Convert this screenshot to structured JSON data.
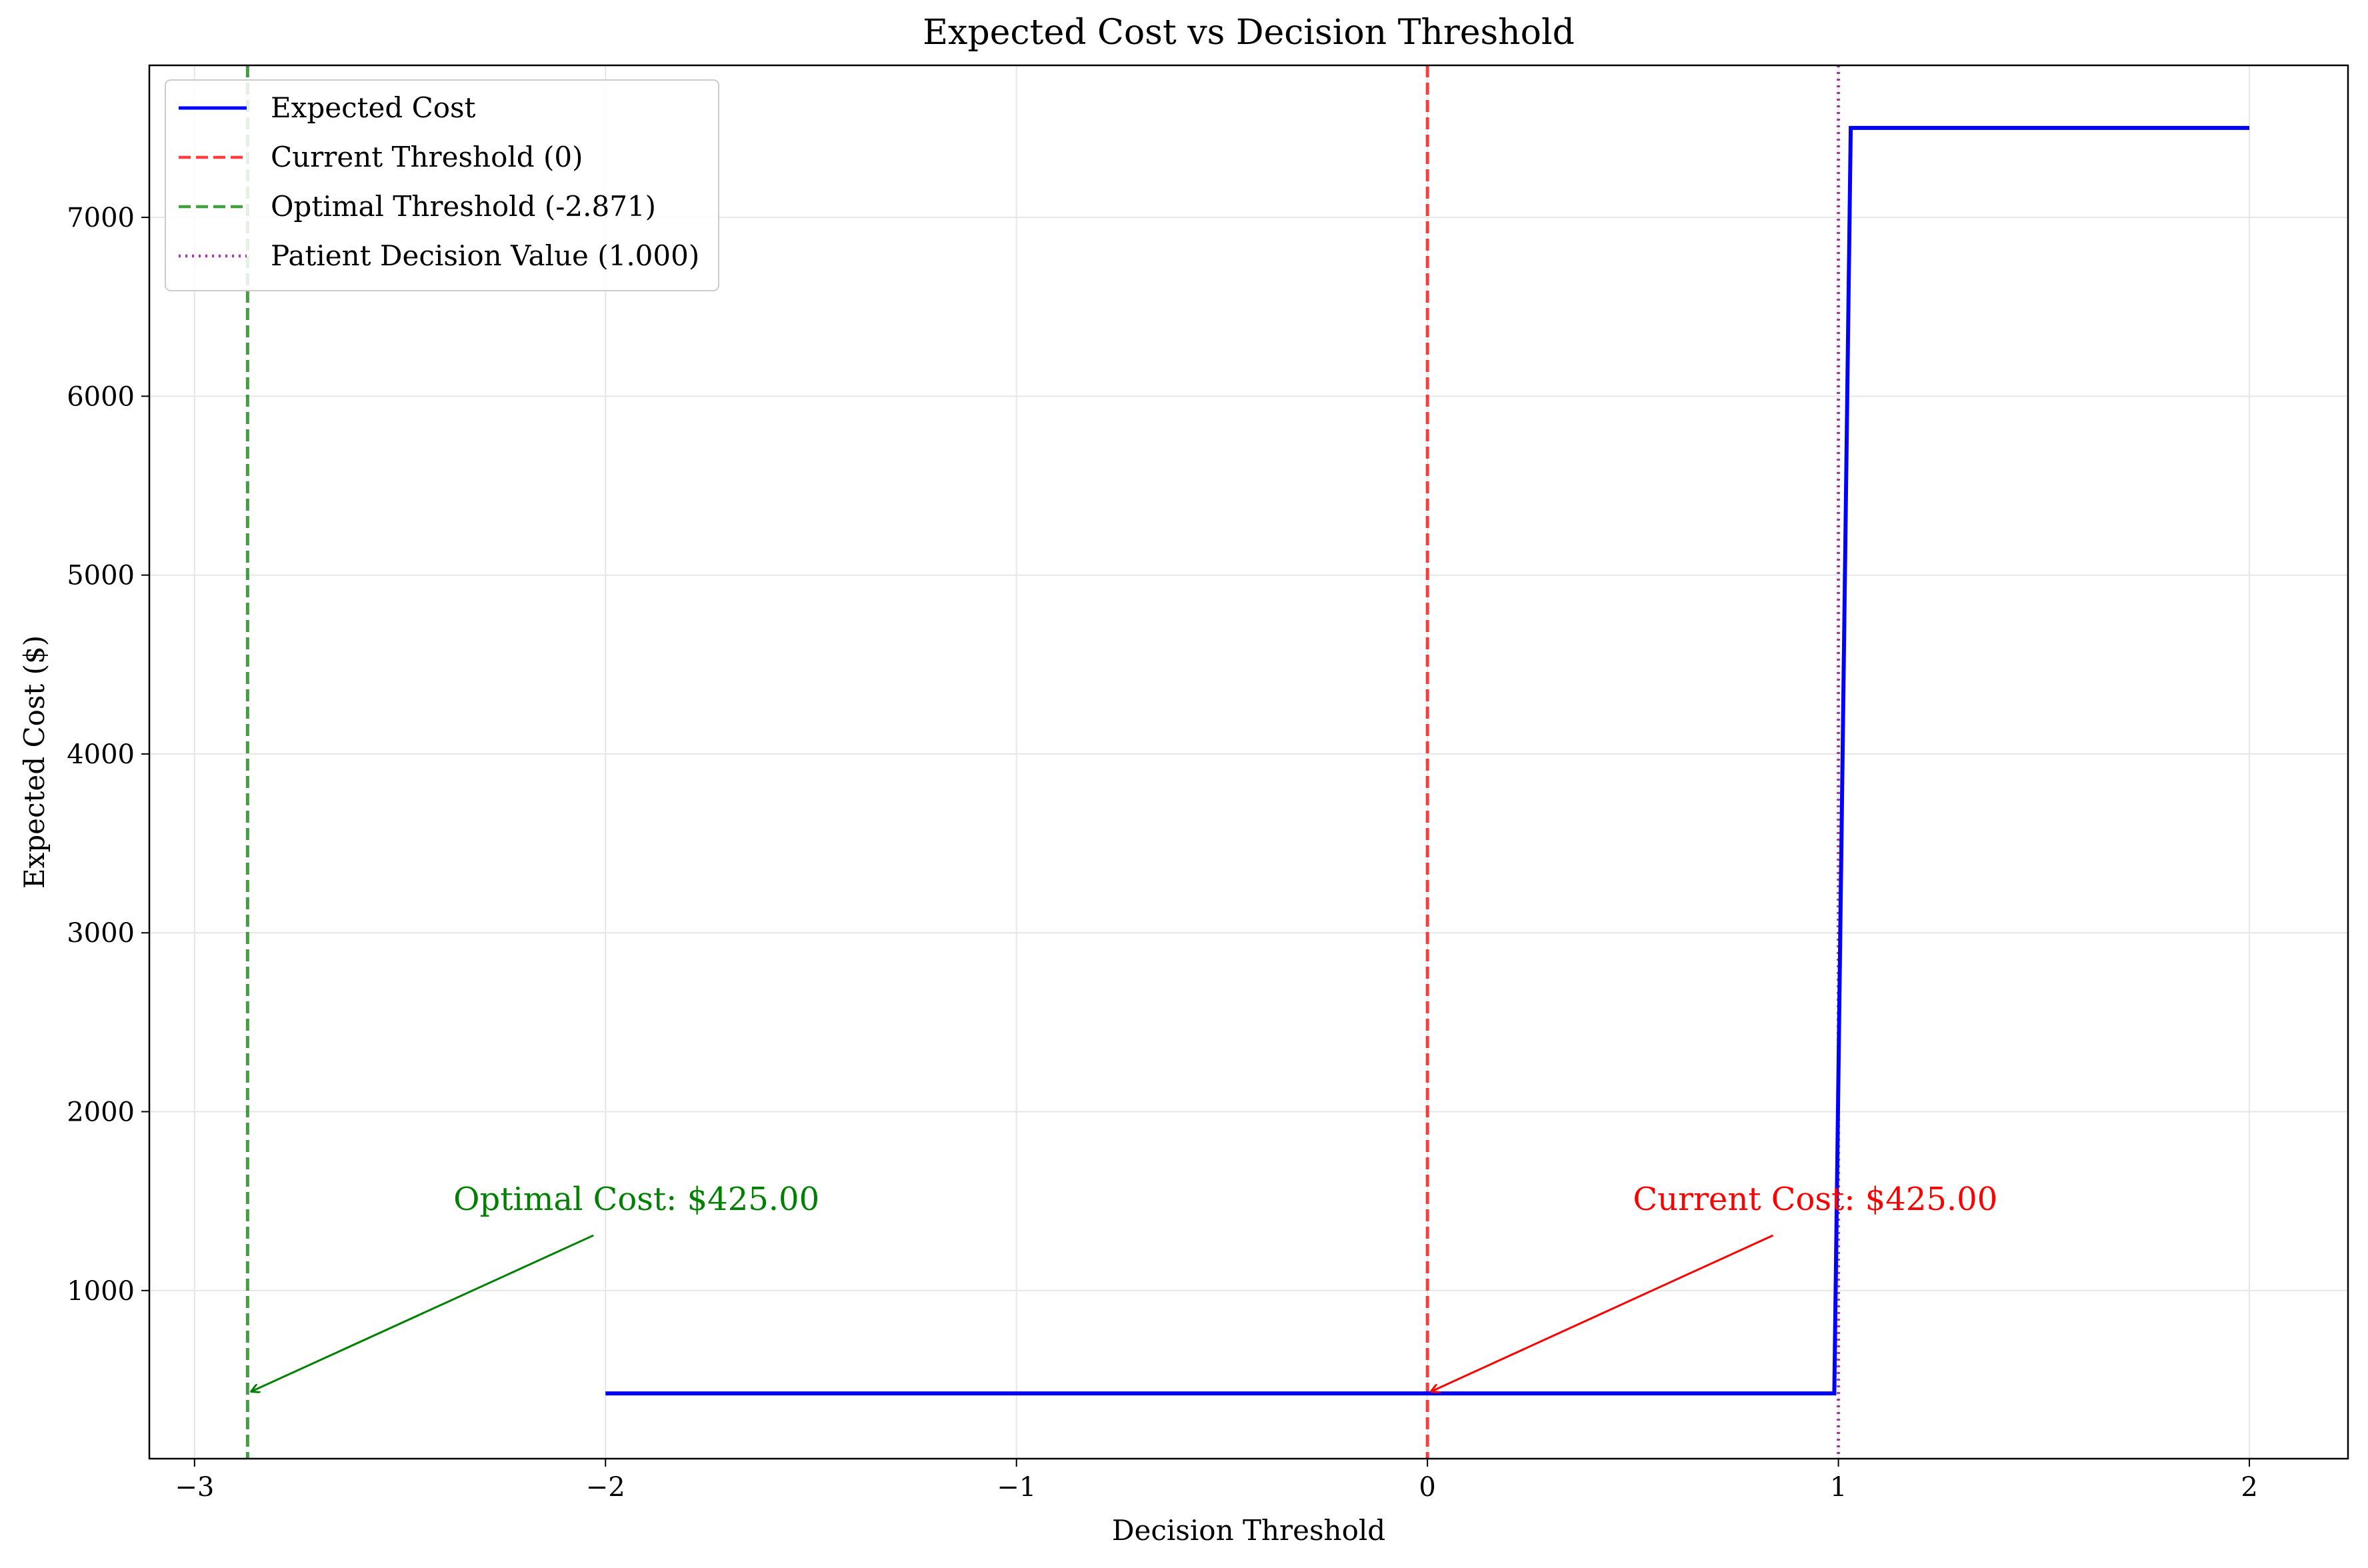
{
  "chart_data": {
    "type": "line",
    "title": "Expected Cost vs Decision Threshold",
    "xlabel": "Decision Threshold",
    "ylabel": "Expected Cost ($)",
    "xlim": [
      -3.11,
      2.24
    ],
    "ylim": [
      60,
      7850
    ],
    "xticks": [
      -3,
      -2,
      -1,
      0,
      1,
      2
    ],
    "xtick_labels": [
      "−3",
      "−2",
      "−1",
      "0",
      "1",
      "2"
    ],
    "yticks": [
      1000,
      2000,
      3000,
      4000,
      5000,
      6000,
      7000
    ],
    "ytick_labels": [
      "1000",
      "2000",
      "3000",
      "4000",
      "5000",
      "6000",
      "7000"
    ],
    "grid": true,
    "legend_position": "top-left",
    "series": [
      {
        "name": "Expected Cost",
        "color": "#0000ff",
        "style": "solid",
        "x": [
          -2.0,
          0.99,
          1.03,
          2.0
        ],
        "y": [
          425,
          425,
          7500,
          7500
        ]
      }
    ],
    "vlines": [
      {
        "name": "Current Threshold (0)",
        "x": 0.0,
        "color": "#ff0000",
        "style": "dashed"
      },
      {
        "name": "Optimal Threshold (-2.871)",
        "x": -2.871,
        "color": "#008000",
        "style": "dashed"
      },
      {
        "name": "Patient Decision Value (1.000)",
        "x": 1.0,
        "color": "#800080",
        "style": "dotted"
      }
    ],
    "annotations": [
      {
        "text": "Optimal Cost: $425.00",
        "text_x": -2.37,
        "text_y": 1450,
        "arrow_x": -2.871,
        "arrow_y": 425,
        "color": "#008000"
      },
      {
        "text": "Current Cost: $425.00",
        "text_x": 0.5,
        "text_y": 1450,
        "arrow_x": 0.0,
        "arrow_y": 425,
        "color": "#ff0000"
      }
    ]
  }
}
